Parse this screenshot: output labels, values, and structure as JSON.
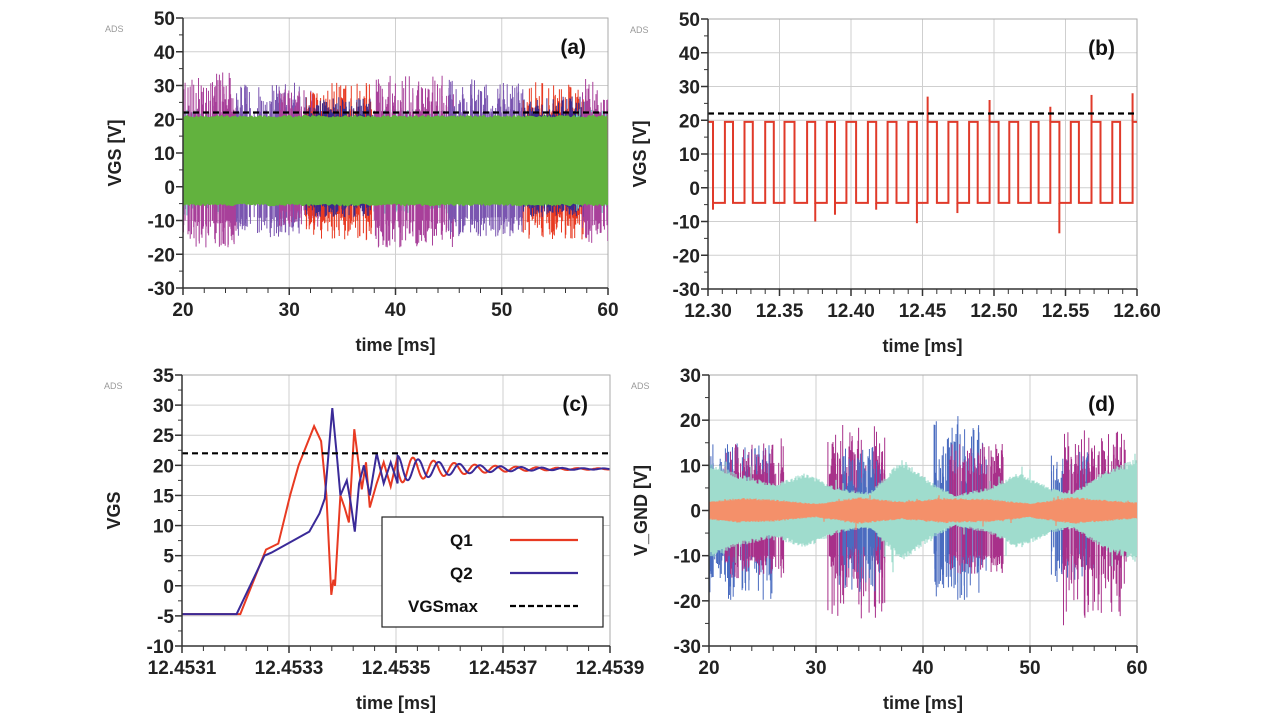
{
  "chart_data": [
    {
      "type": "line",
      "title": "(a)",
      "watermark": "ADS",
      "xlabel": "time [ms]",
      "ylabel": "VGS [V]",
      "xlim": [
        20,
        60
      ],
      "ylim": [
        -30,
        50
      ],
      "xticks": [
        20,
        30,
        40,
        50,
        60
      ],
      "yticks": [
        -30,
        -20,
        -10,
        0,
        10,
        20,
        30,
        40,
        50
      ],
      "grid": true,
      "vgsmax": 22,
      "main_band": {
        "name": "main",
        "color": "#62b23e",
        "low": -5,
        "high": 20.5
      },
      "bursts": [
        {
          "color": "#6fc8c4",
          "t": [
            20,
            25
          ],
          "upper": [
            21,
            23
          ],
          "lower": [
            -5,
            -8.5
          ]
        },
        {
          "color": "#a8409a",
          "t": [
            20,
            25
          ],
          "upper": [
            22,
            34
          ],
          "lower": [
            -10,
            -18
          ]
        },
        {
          "color": "#7a55b0",
          "t": [
            25,
            31
          ],
          "upper": [
            22,
            31
          ],
          "lower": [
            -9,
            -15
          ]
        },
        {
          "color": "#a8409a",
          "t": [
            29,
            33
          ],
          "upper": [
            22,
            29
          ],
          "lower": [
            -7,
            -12
          ]
        },
        {
          "color": "#e83a22",
          "t": [
            31.5,
            38
          ],
          "upper": [
            22,
            31
          ],
          "lower": [
            -8,
            -16
          ]
        },
        {
          "color": "#3a2a8c",
          "t": [
            31.5,
            38
          ],
          "upper": [
            21,
            27
          ],
          "lower": [
            -5.5,
            -9
          ]
        },
        {
          "color": "#6fc8c4",
          "t": [
            38,
            45
          ],
          "upper": [
            21,
            23
          ],
          "lower": [
            -5,
            -8
          ]
        },
        {
          "color": "#a8409a",
          "t": [
            38,
            45.5
          ],
          "upper": [
            22,
            33
          ],
          "lower": [
            -10,
            -18
          ]
        },
        {
          "color": "#7a55b0",
          "t": [
            45,
            52
          ],
          "upper": [
            22,
            32
          ],
          "lower": [
            -9,
            -15
          ]
        },
        {
          "color": "#e83a22",
          "t": [
            52,
            58
          ],
          "upper": [
            22,
            31
          ],
          "lower": [
            -8,
            -16
          ]
        },
        {
          "color": "#3a2a8c",
          "t": [
            52,
            58
          ],
          "upper": [
            21,
            27
          ],
          "lower": [
            -5.5,
            -9
          ]
        },
        {
          "color": "#6fc8c4",
          "t": [
            57,
            60
          ],
          "upper": [
            21,
            23
          ],
          "lower": [
            -5,
            -8
          ]
        },
        {
          "color": "#a8409a",
          "t": [
            57.5,
            60
          ],
          "upper": [
            22,
            32
          ],
          "lower": [
            -10,
            -17
          ]
        }
      ]
    },
    {
      "type": "line",
      "title": "(b)",
      "watermark": "ADS",
      "xlabel": "time [ms]",
      "ylabel": "VGS [V]",
      "xlim": [
        12.3,
        12.6
      ],
      "ylim": [
        -30,
        50
      ],
      "xticks": [
        "12.30",
        "12.35",
        "12.40",
        "12.45",
        "12.50",
        "12.55",
        "12.60"
      ],
      "yticks": [
        -30,
        -20,
        -10,
        0,
        10,
        20,
        30,
        40,
        50
      ],
      "grid": true,
      "vgsmax": 22,
      "series": {
        "name": "VGS",
        "color": "#e03a2a",
        "high_level": 19.5,
        "low_level": -4.5,
        "high_intervals": [
          [
            12.3,
            12.3035
          ],
          [
            12.3118,
            12.3175
          ],
          [
            12.3255,
            12.3313
          ],
          [
            12.34,
            12.346
          ],
          [
            12.3535,
            12.3605
          ],
          [
            12.3693,
            12.375
          ],
          [
            12.3831,
            12.3888
          ],
          [
            12.3968,
            12.4036
          ],
          [
            12.4118,
            12.4176
          ],
          [
            12.4256,
            12.4318
          ],
          [
            12.4401,
            12.4461
          ],
          [
            12.4536,
            12.4601
          ],
          [
            12.4681,
            12.4744
          ],
          [
            12.4826,
            12.4886
          ],
          [
            12.4969,
            12.5032
          ],
          [
            12.5107,
            12.5169
          ],
          [
            12.5257,
            12.5312
          ],
          [
            12.5394,
            12.5457
          ],
          [
            12.5537,
            12.5594
          ],
          [
            12.5682,
            12.5745
          ],
          [
            12.5827,
            12.5882
          ],
          [
            12.5969,
            12.6
          ]
        ],
        "spikes": [
          [
            12.3035,
            -6.5
          ],
          [
            12.375,
            -10
          ],
          [
            12.3888,
            -8
          ],
          [
            12.4176,
            -6.5
          ],
          [
            12.4461,
            -10.5
          ],
          [
            12.4536,
            27
          ],
          [
            12.4744,
            -7.5
          ],
          [
            12.4969,
            26
          ],
          [
            12.5394,
            24
          ],
          [
            12.5457,
            -13.5
          ],
          [
            12.5682,
            27.5
          ],
          [
            12.5969,
            28
          ]
        ]
      }
    },
    {
      "type": "line",
      "title": "(c)",
      "watermark": "ADS",
      "xlabel": "time [ms]",
      "ylabel": "VGS",
      "xlim": [
        12.4531,
        12.4539
      ],
      "ylim": [
        -10,
        35
      ],
      "xticks": [
        "12.4531",
        "12.4533",
        "12.4535",
        "12.4537",
        "12.4539"
      ],
      "yticks": [
        -10,
        -5,
        0,
        5,
        10,
        15,
        20,
        25,
        30,
        35
      ],
      "grid": true,
      "vgsmax": 22,
      "legend": {
        "position": "bottom-right",
        "entries": [
          {
            "label": "Q1",
            "style": "solid",
            "color": "#e83a22"
          },
          {
            "label": "Q2",
            "style": "solid",
            "color": "#3a2a98"
          },
          {
            "label": "VGSmax",
            "style": "dashed",
            "color": "#000000"
          }
        ]
      },
      "series": [
        {
          "name": "Q1",
          "color": "#e83a22",
          "points": [
            [
              12.4531,
              -4.7
            ],
            [
              12.453209,
              -4.7
            ],
            [
              12.453257,
              6
            ],
            [
              12.45328,
              7
            ],
            [
              12.453302,
              15
            ],
            [
              12.453318,
              20
            ],
            [
              12.453347,
              26.5
            ],
            [
              12.45336,
              24
            ],
            [
              12.45337,
              15
            ],
            [
              12.453379,
              -1.5
            ],
            [
              12.453383,
              1
            ],
            [
              12.453386,
              0
            ],
            [
              12.453396,
              15
            ],
            [
              12.453404,
              13
            ],
            [
              12.453412,
              10.5
            ],
            [
              12.453422,
              26
            ],
            [
              12.453436,
              16
            ],
            [
              12.453444,
              20.5
            ],
            [
              12.453451,
              13
            ],
            [
              12.453464,
              17
            ],
            [
              12.453477,
              20.5
            ],
            [
              12.45349,
              16.5
            ],
            [
              12.453503,
              21.5
            ]
          ],
          "tail": {
            "center": 19.4,
            "amplitude": 2.4,
            "period": 3.85e-05,
            "decay": 0.00012,
            "phase": 0.5
          }
        },
        {
          "name": "Q2",
          "color": "#3a2a98",
          "points": [
            [
              12.4531,
              -4.7
            ],
            [
              12.453202,
              -4.7
            ],
            [
              12.453254,
              5
            ],
            [
              12.453267,
              5.5
            ],
            [
              12.453338,
              9
            ],
            [
              12.453357,
              12
            ],
            [
              12.453367,
              14.5
            ],
            [
              12.453381,
              29.5
            ],
            [
              12.45339,
              21
            ],
            [
              12.453396,
              15
            ],
            [
              12.453408,
              17.5
            ],
            [
              12.453415,
              14
            ],
            [
              12.453423,
              9
            ],
            [
              12.453431,
              17
            ],
            [
              12.45344,
              20
            ],
            [
              12.453451,
              15
            ],
            [
              12.453464,
              22
            ],
            [
              12.453477,
              17
            ],
            [
              12.45349,
              20.5
            ],
            [
              12.453503,
              17
            ]
          ],
          "tail": {
            "center": 19.4,
            "amplitude": 2.2,
            "period": 3.85e-05,
            "decay": 0.00012,
            "phase": 0
          }
        }
      ]
    },
    {
      "type": "line",
      "title": "(d)",
      "watermark": "ADS",
      "xlabel": "time [ms]",
      "ylabel": "V_GND [V]",
      "xlim": [
        20,
        60
      ],
      "ylim": [
        -30,
        30
      ],
      "xticks": [
        20,
        30,
        40,
        50,
        60
      ],
      "yticks": [
        -30,
        -20,
        -10,
        0,
        10,
        20,
        30
      ],
      "grid": true,
      "envelope_series": [
        {
          "name": "teal",
          "color": "#9fdccd",
          "amplitude": [
            [
              20,
              11
            ],
            [
              23,
              8
            ],
            [
              26,
              6
            ],
            [
              29,
              8.5
            ],
            [
              32,
              5
            ],
            [
              35,
              4
            ],
            [
              38,
              11.5
            ],
            [
              41,
              6
            ],
            [
              43,
              3.5
            ],
            [
              46,
              5
            ],
            [
              49,
              8.5
            ],
            [
              52,
              5
            ],
            [
              54,
              4
            ],
            [
              57,
              9
            ],
            [
              60,
              11.5
            ]
          ]
        },
        {
          "name": "orange",
          "color": "#f4906a",
          "amplitude": [
            [
              20,
              2
            ],
            [
              23,
              2.8
            ],
            [
              26,
              2.5
            ],
            [
              30,
              1.5
            ],
            [
              34,
              3
            ],
            [
              38,
              2
            ],
            [
              42,
              2.8
            ],
            [
              46,
              2.6
            ],
            [
              50,
              1.6
            ],
            [
              54,
              3
            ],
            [
              58,
              2.2
            ],
            [
              60,
              1.8
            ]
          ]
        }
      ],
      "bursts": [
        {
          "color": "#4a6cc0",
          "t": [
            20,
            26
          ],
          "upper": [
            7,
            15
          ],
          "lower": [
            -10,
            -20
          ]
        },
        {
          "color": "#a8308a",
          "t": [
            21.5,
            27
          ],
          "upper": [
            8,
            16
          ],
          "lower": [
            -10,
            -15
          ]
        },
        {
          "color": "#a8308a",
          "t": [
            31,
            36.5
          ],
          "upper": [
            8,
            19
          ],
          "lower": [
            -10,
            -24
          ]
        },
        {
          "color": "#4a6cc0",
          "t": [
            32,
            36
          ],
          "upper": [
            5,
            15
          ],
          "lower": [
            -8,
            -18
          ]
        },
        {
          "color": "#4a6cc0",
          "t": [
            41,
            46
          ],
          "upper": [
            6,
            21
          ],
          "lower": [
            -9,
            -20
          ]
        },
        {
          "color": "#a8308a",
          "t": [
            42.5,
            47.5
          ],
          "upper": [
            8,
            15
          ],
          "lower": [
            -10,
            -14
          ]
        },
        {
          "color": "#4a6cc0",
          "t": [
            52,
            56
          ],
          "upper": [
            6,
            13
          ],
          "lower": [
            -8,
            -16
          ]
        },
        {
          "color": "#a8308a",
          "t": [
            53,
            59
          ],
          "upper": [
            8,
            18
          ],
          "lower": [
            -10,
            -26
          ]
        }
      ]
    }
  ]
}
